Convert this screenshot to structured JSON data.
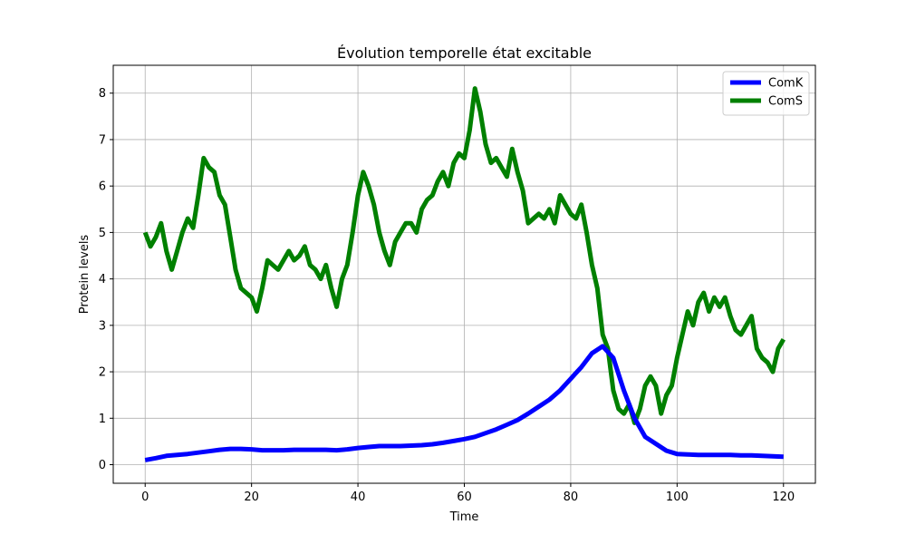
{
  "chart_data": {
    "type": "line",
    "title": "Évolution temporelle état excitable",
    "xlabel": "Time",
    "ylabel": "Protein levels",
    "xlim": [
      -6,
      126
    ],
    "ylim": [
      -0.4,
      8.6
    ],
    "xticks": [
      0,
      20,
      40,
      60,
      80,
      100,
      120
    ],
    "yticks": [
      0,
      1,
      2,
      3,
      4,
      5,
      6,
      7,
      8
    ],
    "grid": true,
    "legend_position": "upper-right",
    "series": [
      {
        "name": "ComK",
        "color": "#0000ff",
        "x": [
          0,
          2,
          4,
          6,
          8,
          10,
          12,
          14,
          16,
          18,
          20,
          22,
          24,
          26,
          28,
          30,
          32,
          34,
          36,
          38,
          40,
          42,
          44,
          46,
          48,
          50,
          52,
          54,
          56,
          58,
          60,
          62,
          64,
          66,
          68,
          70,
          72,
          74,
          76,
          78,
          80,
          82,
          84,
          86,
          88,
          90,
          92,
          94,
          96,
          98,
          100,
          102,
          104,
          106,
          108,
          110,
          112,
          114,
          116,
          118,
          120
        ],
        "y": [
          0.1,
          0.14,
          0.19,
          0.21,
          0.23,
          0.26,
          0.29,
          0.32,
          0.34,
          0.34,
          0.33,
          0.31,
          0.31,
          0.31,
          0.32,
          0.32,
          0.32,
          0.32,
          0.31,
          0.33,
          0.36,
          0.38,
          0.4,
          0.4,
          0.4,
          0.41,
          0.42,
          0.44,
          0.47,
          0.51,
          0.55,
          0.6,
          0.68,
          0.76,
          0.86,
          0.96,
          1.1,
          1.25,
          1.4,
          1.6,
          1.85,
          2.1,
          2.4,
          2.55,
          2.3,
          1.6,
          1.0,
          0.6,
          0.45,
          0.3,
          0.23,
          0.22,
          0.21,
          0.21,
          0.21,
          0.21,
          0.2,
          0.2,
          0.19,
          0.18,
          0.17
        ]
      },
      {
        "name": "ComS",
        "color": "#008000",
        "x": [
          0,
          1,
          2,
          3,
          4,
          5,
          6,
          7,
          8,
          9,
          10,
          11,
          12,
          13,
          14,
          15,
          16,
          17,
          18,
          19,
          20,
          21,
          22,
          23,
          24,
          25,
          26,
          27,
          28,
          29,
          30,
          31,
          32,
          33,
          34,
          35,
          36,
          37,
          38,
          39,
          40,
          41,
          42,
          43,
          44,
          45,
          46,
          47,
          48,
          49,
          50,
          51,
          52,
          53,
          54,
          55,
          56,
          57,
          58,
          59,
          60,
          61,
          62,
          63,
          64,
          65,
          66,
          67,
          68,
          69,
          70,
          71,
          72,
          73,
          74,
          75,
          76,
          77,
          78,
          79,
          80,
          81,
          82,
          83,
          84,
          85,
          86,
          87,
          88,
          89,
          90,
          91,
          92,
          93,
          94,
          95,
          96,
          97,
          98,
          99,
          100,
          101,
          102,
          103,
          104,
          105,
          106,
          107,
          108,
          109,
          110,
          111,
          112,
          113,
          114,
          115,
          116,
          117,
          118,
          119,
          120
        ],
        "y": [
          5.0,
          4.7,
          4.9,
          5.2,
          4.6,
          4.2,
          4.6,
          5.0,
          5.3,
          5.1,
          5.8,
          6.6,
          6.4,
          6.3,
          5.8,
          5.6,
          4.9,
          4.2,
          3.8,
          3.7,
          3.6,
          3.3,
          3.8,
          4.4,
          4.3,
          4.2,
          4.4,
          4.6,
          4.4,
          4.5,
          4.7,
          4.3,
          4.2,
          4.0,
          4.3,
          3.8,
          3.4,
          4.0,
          4.3,
          5.0,
          5.8,
          6.3,
          6.0,
          5.6,
          5.0,
          4.6,
          4.3,
          4.8,
          5.0,
          5.2,
          5.2,
          5.0,
          5.5,
          5.7,
          5.8,
          6.1,
          6.3,
          6.0,
          6.5,
          6.7,
          6.6,
          7.2,
          8.1,
          7.6,
          6.9,
          6.5,
          6.6,
          6.4,
          6.2,
          6.8,
          6.3,
          5.9,
          5.2,
          5.3,
          5.4,
          5.3,
          5.5,
          5.2,
          5.8,
          5.6,
          5.4,
          5.3,
          5.6,
          5.0,
          4.3,
          3.8,
          2.8,
          2.5,
          1.6,
          1.2,
          1.1,
          1.3,
          0.9,
          1.2,
          1.7,
          1.9,
          1.7,
          1.1,
          1.5,
          1.7,
          2.3,
          2.8,
          3.3,
          3.0,
          3.5,
          3.7,
          3.3,
          3.6,
          3.4,
          3.6,
          3.2,
          2.9,
          2.8,
          3.0,
          3.2,
          2.5,
          2.3,
          2.2,
          2.0,
          2.5,
          2.7
        ]
      }
    ]
  }
}
